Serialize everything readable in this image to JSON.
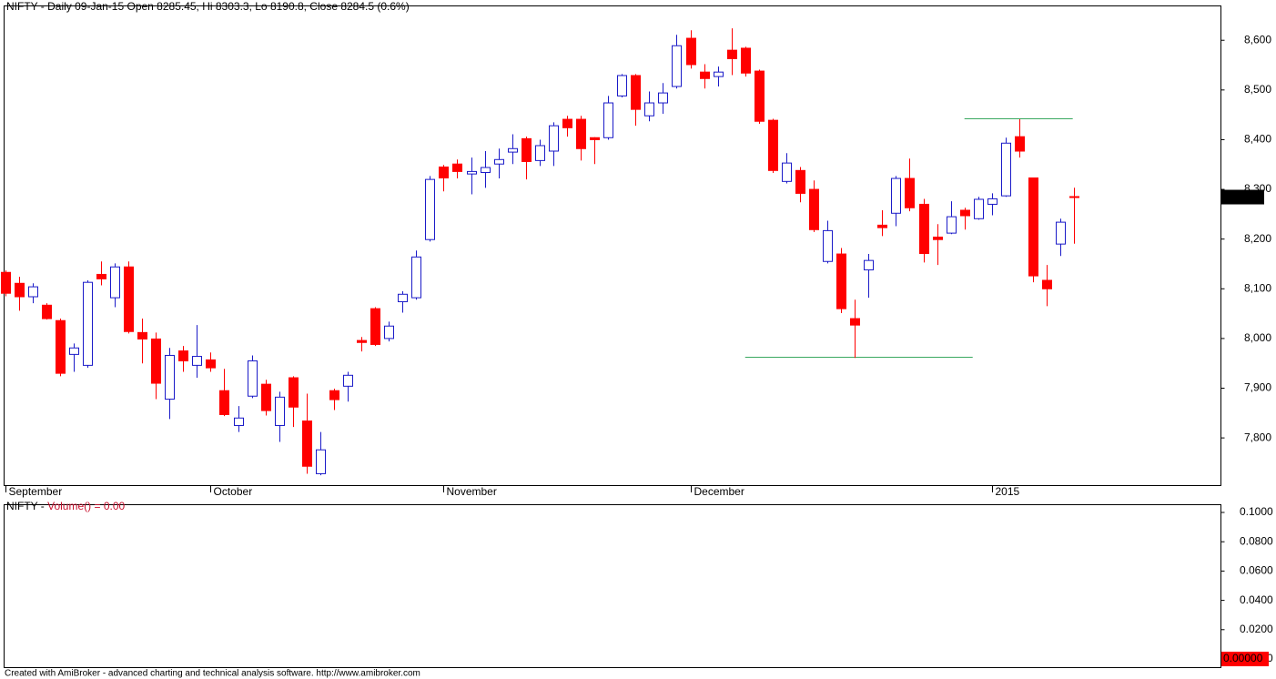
{
  "chart_data": [
    {
      "type": "candlestick",
      "title": "NIFTY - Daily 09-Jan-15 Open 8285.45, Hi 8303.3, Lo 8190.8, Close 8284.5 (0.6%)",
      "categories": [
        "September",
        null,
        null,
        null,
        null,
        null,
        null,
        null,
        null,
        null,
        null,
        null,
        null,
        null,
        null,
        "October",
        null,
        null,
        null,
        null,
        null,
        null,
        null,
        null,
        null,
        null,
        null,
        null,
        null,
        null,
        null,
        null,
        "November",
        null,
        null,
        null,
        null,
        null,
        null,
        null,
        null,
        null,
        null,
        null,
        null,
        null,
        null,
        null,
        null,
        null,
        "December",
        null,
        null,
        null,
        null,
        null,
        null,
        null,
        null,
        null,
        null,
        null,
        null,
        null,
        null,
        null,
        null,
        null,
        null,
        null,
        null,
        null,
        "2015",
        null,
        null,
        null,
        null,
        null,
        null
      ],
      "open": [
        8133,
        8111,
        8084,
        8067,
        8036,
        7968,
        7946,
        8129,
        8082,
        8144,
        8012,
        7999,
        7878,
        7975,
        7946,
        7957,
        7895,
        7825,
        7884,
        7908,
        7825,
        7921,
        7834,
        7728,
        7895,
        7904,
        7996,
        8060,
        8000,
        8074,
        8082,
        8199,
        8345,
        8351,
        8331,
        8334,
        8351,
        8375,
        8402,
        8358,
        8377,
        8441,
        8441,
        8404,
        8404,
        8488,
        8529,
        8448,
        8474,
        8507,
        8604,
        8536,
        8527,
        8580,
        8584,
        8538,
        8439,
        8316,
        8338,
        8300,
        8155,
        8170,
        8040,
        8138,
        8228,
        8252,
        8322,
        8270,
        8204,
        8212,
        8258,
        8241,
        8270,
        8287,
        8406,
        8323,
        8117,
        8190,
        8285.45
      ],
      "high": [
        8137,
        8124,
        8111,
        8071,
        8040,
        7990,
        8117,
        8155,
        8151,
        8155,
        8040,
        8012,
        7981,
        7985,
        8027,
        7972,
        7939,
        7864,
        7966,
        7917,
        7893,
        7924,
        7889,
        7812,
        7899,
        7933,
        8003,
        8063,
        8034,
        8095,
        8177,
        8327,
        8349,
        8360,
        8364,
        8377,
        8382,
        8411,
        8406,
        8400,
        8435,
        8448,
        8448,
        8405,
        8488,
        8532,
        8532,
        8497,
        8514,
        8611,
        8620,
        8552,
        8547,
        8624,
        8587,
        8541,
        8442,
        8373,
        8345,
        8318,
        8237,
        8182,
        8078,
        8170,
        8258,
        8327,
        8362,
        8281,
        8230,
        8276,
        8263,
        8285,
        8292,
        8404,
        8441,
        8323,
        8148,
        8241,
        8303.3
      ],
      "low": [
        8085,
        8056,
        8071,
        8038,
        7924,
        7933,
        7941,
        8107,
        8063,
        8010,
        7950,
        7878,
        7838,
        7933,
        7921,
        7933,
        7844,
        7812,
        7880,
        7845,
        7792,
        7822,
        7728,
        7725,
        7856,
        7873,
        7974,
        7985,
        7994,
        8052,
        8078,
        8195,
        8296,
        8322,
        8290,
        8303,
        8322,
        8351,
        8320,
        8347,
        8347,
        8406,
        8358,
        8351,
        8400,
        8485,
        8428,
        8437,
        8452,
        8503,
        8543,
        8503,
        8507,
        8530,
        8527,
        8432,
        8333,
        8312,
        8274,
        8214,
        8151,
        8051,
        7961,
        8082,
        8206,
        8226,
        8256,
        8153,
        8148,
        8210,
        8219,
        8239,
        8248,
        8285,
        8364,
        8113,
        8065,
        8166,
        8190.8
      ],
      "close": [
        8091,
        8084,
        8104,
        8040,
        7930,
        7981,
        8113,
        8120,
        8144,
        8014,
        7999,
        7910,
        7966,
        7955,
        7964,
        7941,
        7847,
        7840,
        7955,
        7855,
        7882,
        7862,
        7743,
        7776,
        7877,
        7926,
        7992,
        7988,
        8025,
        8089,
        8164,
        8320,
        8323,
        8336,
        8336,
        8344,
        8360,
        8382,
        8356,
        8388,
        8428,
        8424,
        8382,
        8400,
        8474,
        8529,
        8461,
        8474,
        8494,
        8589,
        8551,
        8523,
        8536,
        8563,
        8534,
        8437,
        8338,
        8353,
        8292,
        8219,
        8217,
        8060,
        8027,
        8157,
        8223,
        8322,
        8263,
        8171,
        8199,
        8245,
        8247,
        8280,
        8281,
        8393,
        8377,
        8126,
        8100,
        8234,
        8284.5
      ],
      "up_color": "#1a1ac8",
      "down_color": "#ff0000",
      "ylim": [
        7705,
        8670
      ],
      "yticks": [
        {
          "value": 7800,
          "label": "7,800"
        },
        {
          "value": 7900,
          "label": "7,900"
        },
        {
          "value": 8000,
          "label": "8,000"
        },
        {
          "value": 8100,
          "label": "8,100"
        },
        {
          "value": 8200,
          "label": "8,200"
        },
        {
          "value": 8300,
          "label": "8,300"
        },
        {
          "value": 8400,
          "label": "8,400"
        },
        {
          "value": 8500,
          "label": "8,500"
        },
        {
          "value": 8600,
          "label": "8,600"
        }
      ],
      "hlines": [
        {
          "y": 7963,
          "x": [
            54,
            70.6
          ],
          "color": "#3aa860"
        },
        {
          "y": 8443,
          "x": [
            70,
            77.9
          ],
          "color": "#3aa860"
        }
      ],
      "last_label": "8,284.5"
    },
    {
      "type": "bar",
      "title_parts": [
        "NIFTY -",
        "Volume() = 0.00"
      ],
      "ylim": [
        -0.0056,
        0.1056
      ],
      "yticks": [
        {
          "value": 0,
          "label": "0.0000"
        },
        {
          "value": 0.02,
          "label": "0.0200"
        },
        {
          "value": 0.04,
          "label": "0.0400"
        },
        {
          "value": 0.06,
          "label": "0.0600"
        },
        {
          "value": 0.08,
          "label": "0.0800"
        },
        {
          "value": 0.1,
          "label": "0.1000"
        }
      ],
      "last_value": 0,
      "last_label": "0.00000"
    }
  ],
  "footer": "Created with AmiBroker - advanced charting and technical analysis software. http://www.amibroker.com"
}
